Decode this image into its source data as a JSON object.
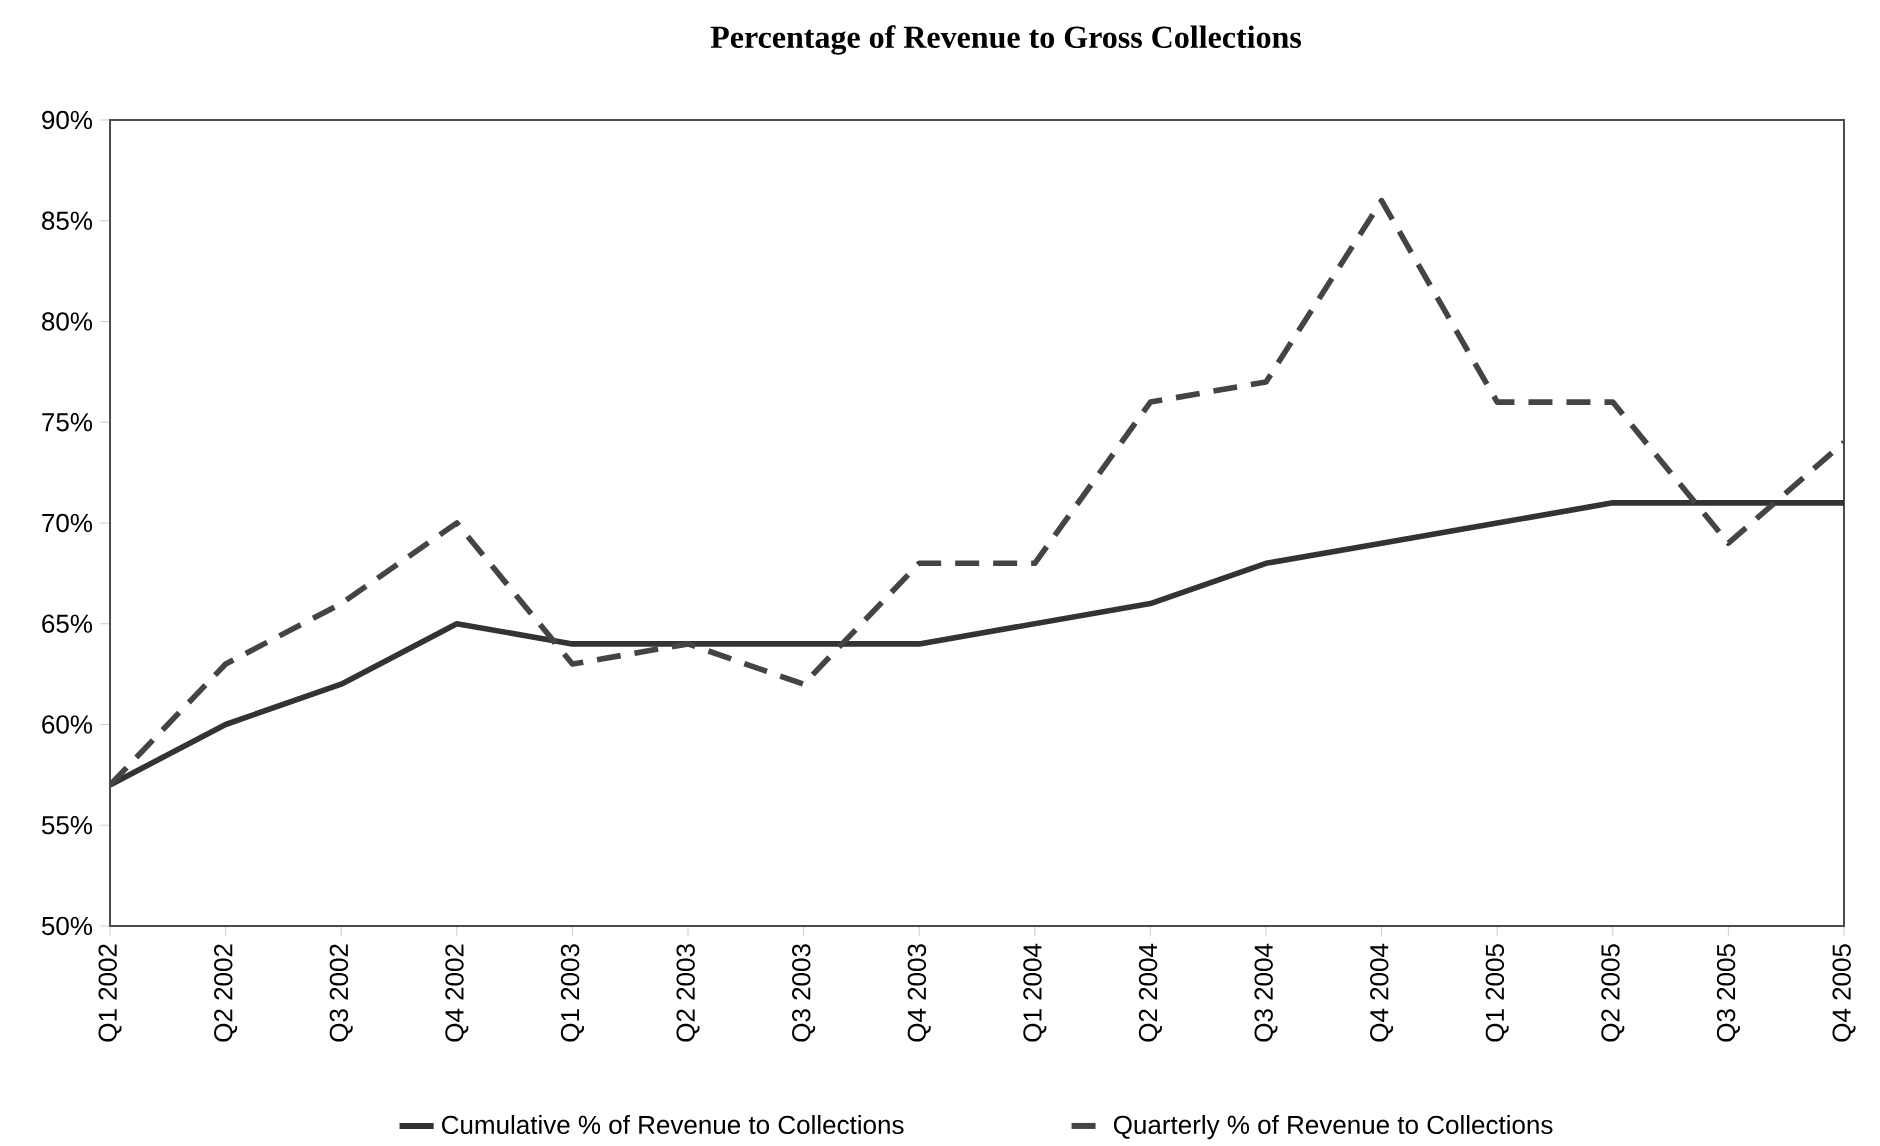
{
  "chart_data": {
    "type": "line",
    "title": "Percentage of Revenue to Gross Collections",
    "categories": [
      "Q1 2002",
      "Q2 2002",
      "Q3 2002",
      "Q4 2002",
      "Q1 2003",
      "Q2 2003",
      "Q3 2003",
      "Q4 2003",
      "Q1 2004",
      "Q2 2004",
      "Q3 2004",
      "Q4 2004",
      "Q1 2005",
      "Q2 2005",
      "Q3 2005",
      "Q4 2005"
    ],
    "series": [
      {
        "name": "Cumulative % of Revenue to Collections",
        "color": "#333333",
        "line_style": "solid",
        "values": [
          57,
          60,
          62,
          65,
          64,
          64,
          64,
          64,
          65,
          66,
          68,
          69,
          70,
          71,
          71,
          71
        ]
      },
      {
        "name": "Quarterly % of Revenue to Collections",
        "color": "#444444",
        "line_style": "dashed",
        "values": [
          57,
          63,
          66,
          70,
          63,
          64,
          62,
          68,
          68,
          76,
          77,
          86,
          76,
          76,
          69,
          74
        ]
      }
    ],
    "ylim": [
      50,
      90
    ],
    "yticks": [
      {
        "value": 50,
        "label": "50%"
      },
      {
        "value": 55,
        "label": "55%"
      },
      {
        "value": 60,
        "label": "60%"
      },
      {
        "value": 65,
        "label": "65%"
      },
      {
        "value": 70,
        "label": "70%"
      },
      {
        "value": 75,
        "label": "75%"
      },
      {
        "value": 80,
        "label": "80%"
      },
      {
        "value": 85,
        "label": "85%"
      },
      {
        "value": 90,
        "label": "90%"
      }
    ],
    "legend": "bottom",
    "marker": "none"
  }
}
